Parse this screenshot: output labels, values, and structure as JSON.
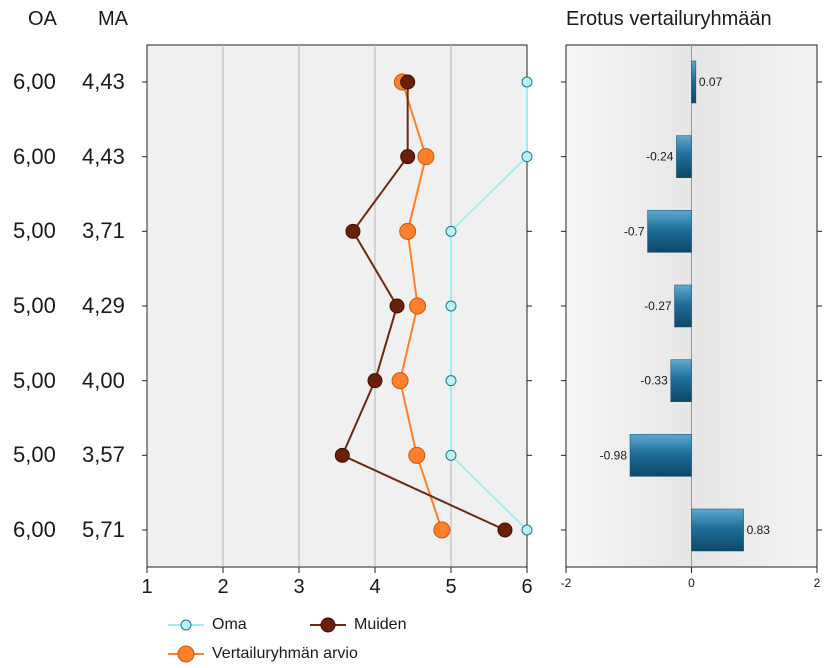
{
  "headers": {
    "oa": "OA",
    "ma": "MA",
    "diff_title": "Erotus vertailuryhmään"
  },
  "rows": [
    {
      "oa": "6,00",
      "ma": "4,43"
    },
    {
      "oa": "6,00",
      "ma": "4,43"
    },
    {
      "oa": "5,00",
      "ma": "3,71"
    },
    {
      "oa": "5,00",
      "ma": "4,29"
    },
    {
      "oa": "5,00",
      "ma": "4,00"
    },
    {
      "oa": "5,00",
      "ma": "3,57"
    },
    {
      "oa": "6,00",
      "ma": "5,71"
    }
  ],
  "legend": {
    "oma": "Oma",
    "muiden": "Muiden",
    "vertailu": "Vertailuryhmän arvio"
  },
  "colors": {
    "oma": "#9ef0f0",
    "muiden": "#6b2a10",
    "vertailu": "#ff7f2a",
    "bar": "#1f6f9a"
  },
  "chart_data": [
    {
      "type": "line",
      "title": "",
      "xlabel": "",
      "ylabel": "",
      "xlim": [
        1,
        6
      ],
      "xticks": [
        "1",
        "2",
        "3",
        "4",
        "5",
        "6"
      ],
      "grid": true,
      "series": [
        {
          "name": "Oma",
          "values": [
            6.0,
            6.0,
            5.0,
            5.0,
            5.0,
            5.0,
            6.0
          ]
        },
        {
          "name": "Muiden",
          "values": [
            4.43,
            4.43,
            3.71,
            4.29,
            4.0,
            3.57,
            5.71
          ]
        },
        {
          "name": "Vertailuryhmän arvio",
          "values": [
            4.36,
            4.67,
            4.43,
            4.56,
            4.33,
            4.55,
            4.88
          ]
        }
      ]
    },
    {
      "type": "bar",
      "orientation": "horizontal",
      "title": "Erotus vertailuryhmään",
      "xlim": [
        -2,
        2
      ],
      "xticks": [
        "-2",
        "0",
        "2"
      ],
      "values": [
        0.07,
        -0.24,
        -0.7,
        -0.27,
        -0.33,
        -0.98,
        0.83
      ],
      "labels": [
        "0.07",
        "-0.24",
        "-0.7",
        "-0.27",
        "-0.33",
        "-0.98",
        "0.83"
      ]
    }
  ]
}
